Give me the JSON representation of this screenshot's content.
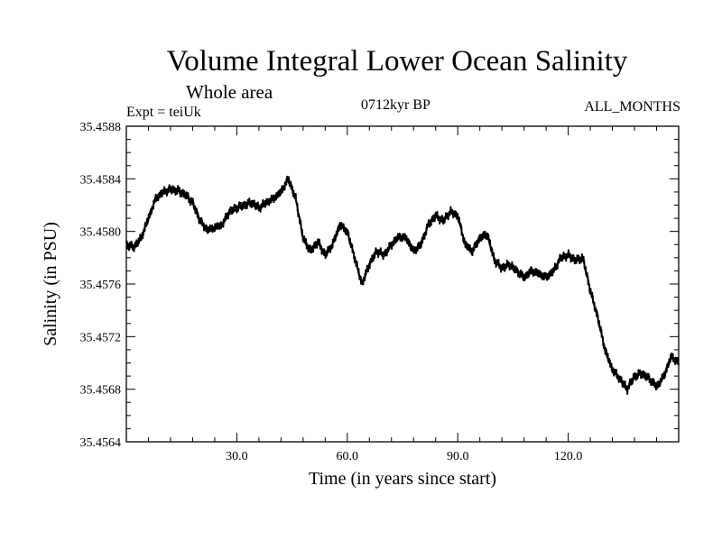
{
  "header": {
    "title": "Volume Integral Lower Ocean Salinity",
    "subtitle": "Whole area",
    "experiment": "Expt = teiUk",
    "period": "0712kyr BP",
    "months": "ALL_MONTHS"
  },
  "chart_data": {
    "type": "line",
    "title": "Volume Integral Lower Ocean Salinity",
    "xlabel": "Time (in years since start)",
    "ylabel": "Salinity (in PSU)",
    "xlim": [
      0,
      150
    ],
    "ylim": [
      35.4564,
      35.4588
    ],
    "xticks": [
      30,
      60,
      90,
      120
    ],
    "xtick_labels": [
      "30.0",
      "60.0",
      "90.0",
      "120.0"
    ],
    "yticks": [
      35.4564,
      35.4568,
      35.4572,
      35.4576,
      35.458,
      35.4584,
      35.4588
    ],
    "ytick_labels": [
      "35.4564",
      "35.4568",
      "35.4572",
      "35.4576",
      "35.4580",
      "35.4584",
      "35.4588"
    ],
    "grid": false,
    "series": [
      {
        "name": "Salinity",
        "x": [
          0,
          2,
          4,
          6,
          8,
          10,
          12,
          14,
          16,
          18,
          20,
          22,
          24,
          26,
          28,
          30,
          32,
          34,
          36,
          38,
          40,
          42,
          44,
          46,
          48,
          50,
          52,
          54,
          56,
          58,
          60,
          62,
          64,
          66,
          68,
          70,
          72,
          74,
          76,
          78,
          80,
          82,
          84,
          86,
          88,
          90,
          92,
          94,
          96,
          98,
          100,
          102,
          104,
          106,
          108,
          110,
          112,
          114,
          116,
          118,
          120,
          122,
          124,
          126,
          128,
          130,
          132,
          134,
          136,
          138,
          140,
          142,
          144,
          146,
          148,
          150
        ],
        "values": [
          35.4579,
          35.45788,
          35.45795,
          35.4581,
          35.45825,
          35.4583,
          35.45832,
          35.45831,
          35.45828,
          35.45822,
          35.45808,
          35.45801,
          35.45803,
          35.45805,
          35.45815,
          35.45818,
          35.4582,
          35.45822,
          35.45818,
          35.45822,
          35.45825,
          35.4583,
          35.4584,
          35.45825,
          35.45795,
          35.45785,
          35.45792,
          35.45782,
          35.4579,
          35.45805,
          35.458,
          35.4578,
          35.4576,
          35.45775,
          35.45785,
          35.45782,
          35.4579,
          35.45796,
          35.45795,
          35.45785,
          35.4579,
          35.45805,
          35.45812,
          35.45808,
          35.45815,
          35.45812,
          35.4579,
          35.45785,
          35.45795,
          35.45798,
          35.45778,
          35.45772,
          35.45775,
          35.4577,
          35.45765,
          35.4577,
          35.45768,
          35.45765,
          35.4577,
          35.4578,
          35.45782,
          35.45778,
          35.4578,
          35.45755,
          35.45735,
          35.4571,
          35.45695,
          35.45688,
          35.4568,
          35.4569,
          35.45692,
          35.45688,
          35.45682,
          35.4569,
          35.45705,
          35.457
        ]
      }
    ]
  }
}
